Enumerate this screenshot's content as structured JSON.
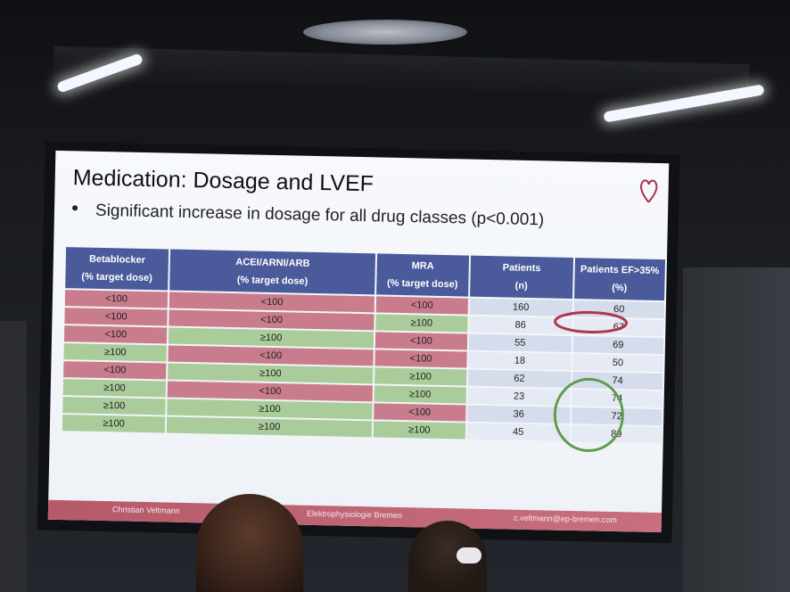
{
  "slide": {
    "title": "Medication: Dosage and LVEF",
    "bullet": "Significant increase in dosage for all drug classes (p<0.001)",
    "columns": [
      {
        "line1": "Betablocker",
        "line2": "(% target dose)"
      },
      {
        "line1": "ACEI/ARNI/ARB",
        "line2": "(% target dose)"
      },
      {
        "line1": "MRA",
        "line2": "(% target dose)"
      },
      {
        "line1": "Patients",
        "line2": "(n)"
      },
      {
        "line1": "Patients EF>35%",
        "line2": "(%)"
      }
    ],
    "rows": [
      {
        "beta": "<100",
        "acei": "<100",
        "mra": "<100",
        "n": "160",
        "pct": "60"
      },
      {
        "beta": "<100",
        "acei": "<100",
        "mra": "≥100",
        "n": "86",
        "pct": "67"
      },
      {
        "beta": "<100",
        "acei": "≥100",
        "mra": "<100",
        "n": "55",
        "pct": "69"
      },
      {
        "beta": "≥100",
        "acei": "<100",
        "mra": "<100",
        "n": "18",
        "pct": "50"
      },
      {
        "beta": "<100",
        "acei": "≥100",
        "mra": "≥100",
        "n": "62",
        "pct": "74"
      },
      {
        "beta": "≥100",
        "acei": "<100",
        "mra": "≥100",
        "n": "23",
        "pct": "74"
      },
      {
        "beta": "≥100",
        "acei": "≥100",
        "mra": "<100",
        "n": "36",
        "pct": "72"
      },
      {
        "beta": "≥100",
        "acei": "≥100",
        "mra": "≥100",
        "n": "45",
        "pct": "89"
      }
    ],
    "footer": {
      "author": "Christian Veltmann",
      "org": "Elektrophysiologie Bremen",
      "email": "c.veltmann@ep-bremen.com"
    },
    "colors": {
      "low": "#c97c8c",
      "high": "#a9cc9a",
      "header": "#4a5a9a",
      "footer": "#b65a6a",
      "circle_red": "#b0384a",
      "circle_green": "#5f9c4a"
    }
  }
}
